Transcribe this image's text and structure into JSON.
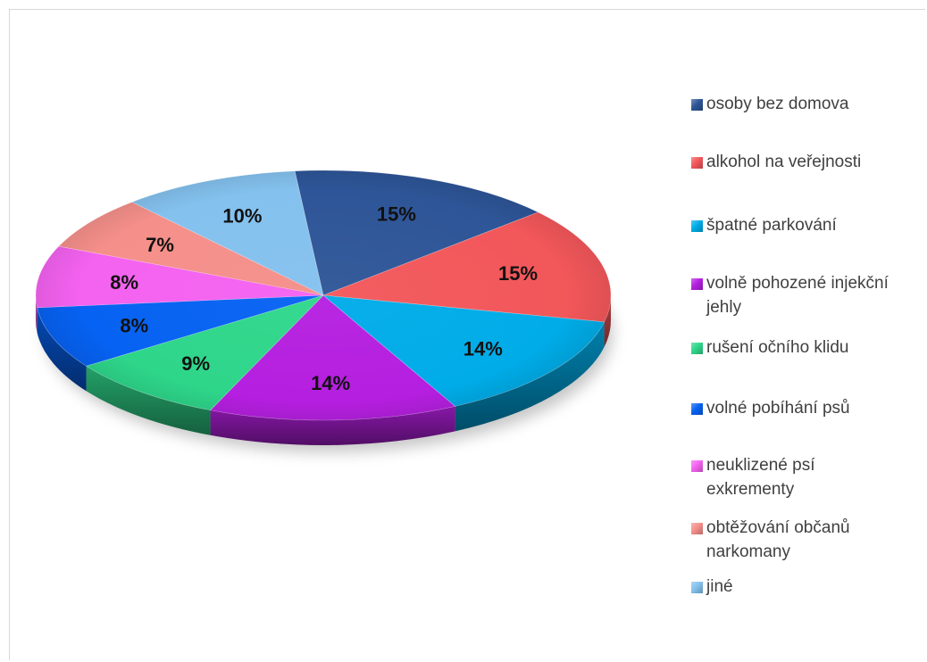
{
  "chart_data": {
    "type": "pie",
    "style": "3d-exploded-none",
    "title": "",
    "legend_position": "right",
    "slices": [
      {
        "label": "osoby bez domova",
        "value": 15,
        "value_label": "15%",
        "color": "#2E5597"
      },
      {
        "label": "alkohol na veřejnosti",
        "value": 15,
        "value_label": "15%",
        "color": "#F2575A"
      },
      {
        "label": "špatné parkování",
        "value": 14,
        "value_label": "14%",
        "color": "#00ACE8"
      },
      {
        "label": "volně pohozené injekční jehly",
        "value": 14,
        "value_label": "14%",
        "color": "#B51FE0"
      },
      {
        "label": "rušení očního klidu",
        "value": 9,
        "value_label": "9%",
        "color": "#2ED68A"
      },
      {
        "label": "volné pobíhání psů",
        "value": 8,
        "value_label": "8%",
        "color": "#0662F2"
      },
      {
        "label": "neuklizené psí exkrementy",
        "value": 8,
        "value_label": "8%",
        "color": "#F462F0"
      },
      {
        "label": "obtěžování občanů narkomany",
        "value": 7,
        "value_label": "7%",
        "color": "#F58F8A"
      },
      {
        "label": "jiné",
        "value": 10,
        "value_label": "10%",
        "color": "#84C1EE"
      }
    ]
  },
  "legend": {
    "items": [
      {
        "lines": [
          "osoby bez domova"
        ]
      },
      {
        "lines": [
          "alkohol na veřejnosti"
        ]
      },
      {
        "lines": [
          "špatné parkování"
        ]
      },
      {
        "lines": [
          "volně pohozené injekční",
          "jehly"
        ]
      },
      {
        "lines": [
          "rušení očního klidu"
        ]
      },
      {
        "lines": [
          "volné pobíhání psů"
        ]
      },
      {
        "lines": [
          "neuklizené psí",
          "exkrementy"
        ]
      },
      {
        "lines": [
          "obtěžování občanů",
          "narkomany"
        ]
      },
      {
        "lines": [
          "jiné"
        ]
      }
    ]
  }
}
